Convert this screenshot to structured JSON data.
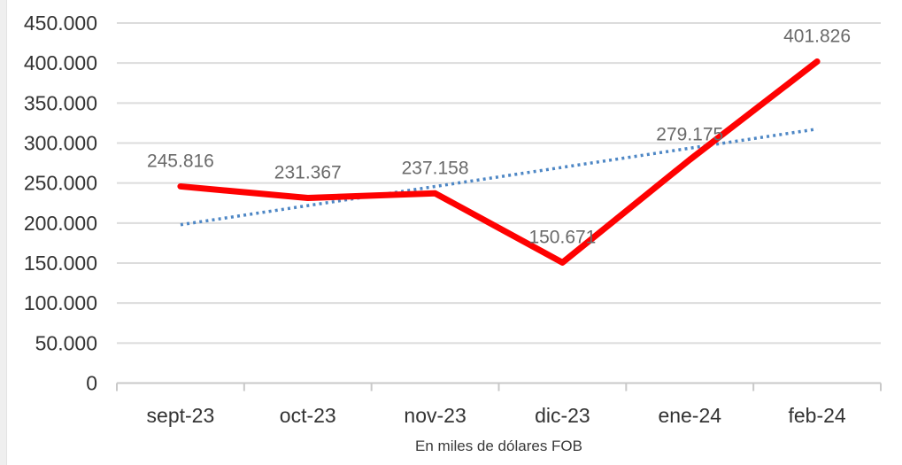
{
  "page": {
    "background": "#ffffff",
    "edge_strip_color": "#efefef"
  },
  "chart_data": {
    "type": "line",
    "title": "",
    "categories": [
      "sept-23",
      "oct-23",
      "nov-23",
      "dic-23",
      "ene-24",
      "feb-24"
    ],
    "series": [
      {
        "color": "#fe0101",
        "values": [
          245816,
          231367,
          237158,
          150671,
          279175,
          401826
        ],
        "labels": [
          "245.816",
          "231.367",
          "237.158",
          "150.671",
          "279.175",
          "401.826"
        ]
      }
    ],
    "trendline": {
      "style": "dotted",
      "color": "#4e87c5",
      "start_value": 197900,
      "end_value": 317500
    },
    "xlabel": "En miles de dólares FOB",
    "ylabel": "",
    "ylim": [
      0,
      450000
    ],
    "ytick_step": 50000,
    "ytick_labels": [
      "0",
      "50.000",
      "100.000",
      "150.000",
      "200.000",
      "250.000",
      "300.000",
      "350.000",
      "400.000",
      "450.000"
    ],
    "grid": true,
    "legend_position": "none",
    "colors": {
      "gridline": "#dcdcdc",
      "axis_line": "#c9c9c9",
      "axis_tick_label": "#333333",
      "data_label": "#6a6a6a"
    }
  }
}
